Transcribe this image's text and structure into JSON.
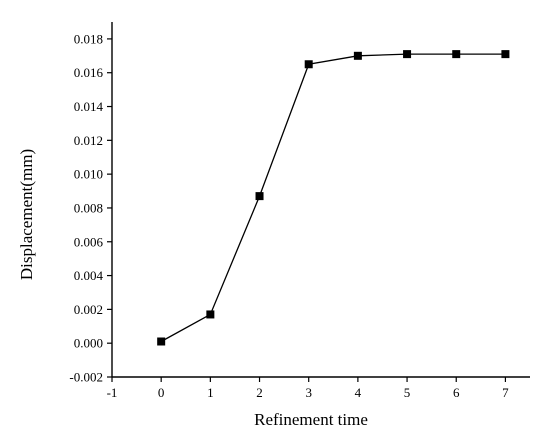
{
  "chart_data": {
    "type": "line",
    "xlabel": "Refinement time",
    "ylabel": "Displacement(mm)",
    "xlim": [
      -1,
      7.5
    ],
    "ylim": [
      -0.002,
      0.019
    ],
    "x_ticks": [
      -1,
      0,
      1,
      2,
      3,
      4,
      5,
      6,
      7
    ],
    "y_ticks": [
      -0.002,
      0.0,
      0.002,
      0.004,
      0.006,
      0.008,
      0.01,
      0.012,
      0.014,
      0.016,
      0.018
    ],
    "x_tick_labels": [
      "-1",
      "0",
      "1",
      "2",
      "3",
      "4",
      "5",
      "6",
      "7"
    ],
    "y_tick_labels": [
      "-0.002",
      "0.000",
      "0.002",
      "0.004",
      "0.006",
      "0.008",
      "0.010",
      "0.012",
      "0.014",
      "0.016",
      "0.018"
    ],
    "grid": false,
    "marker": "square",
    "series": [
      {
        "x": [
          0,
          1,
          2,
          3,
          4,
          5,
          6,
          7
        ],
        "values": [
          0.0001,
          0.0017,
          0.0087,
          0.0165,
          0.017,
          0.0171,
          0.0171,
          0.0171
        ]
      }
    ]
  }
}
